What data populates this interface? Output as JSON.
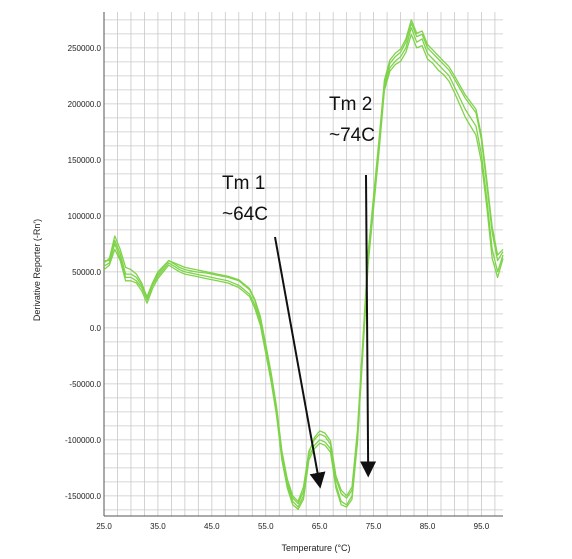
{
  "chart_data": {
    "type": "line",
    "title": "",
    "xlabel": "Temperature (°C)",
    "ylabel": "Derivative Reporter (-Rn')",
    "xlim": [
      25,
      99
    ],
    "ylim": [
      -168000,
      282000
    ],
    "x_ticks": [
      {
        "value": 25,
        "label": "25.0"
      },
      {
        "value": 35,
        "label": "35.0"
      },
      {
        "value": 45,
        "label": "45.0"
      },
      {
        "value": 55,
        "label": "55.0"
      },
      {
        "value": 65,
        "label": "65.0"
      },
      {
        "value": 75,
        "label": "75.0"
      },
      {
        "value": 85,
        "label": "85.0"
      },
      {
        "value": 95,
        "label": "95.0"
      }
    ],
    "y_ticks": [
      {
        "value": 250000,
        "label": "250000.0"
      },
      {
        "value": 200000,
        "label": "200000.0"
      },
      {
        "value": 150000,
        "label": "150000.0"
      },
      {
        "value": 100000,
        "label": "100000.0"
      },
      {
        "value": 50000,
        "label": "50000.0"
      },
      {
        "value": 0,
        "label": "0.0"
      },
      {
        "value": -50000,
        "label": "-50000.0"
      },
      {
        "value": -100000,
        "label": "-100000.0"
      },
      {
        "value": -150000,
        "label": "-150000.0"
      }
    ],
    "grid": true,
    "grid_minor_x_step": 2.5,
    "grid_minor_y_step": 12500,
    "line_color": "#7fd34a",
    "series": [
      {
        "x": [
          25,
          26,
          27,
          28,
          29,
          30,
          31,
          32,
          33,
          34,
          35,
          36,
          37,
          38,
          39,
          40,
          42,
          44,
          46,
          48,
          50,
          52,
          53,
          54,
          55,
          56,
          57,
          58,
          59,
          60,
          61,
          62,
          63,
          64,
          65,
          66,
          67,
          68,
          69,
          70,
          71,
          72,
          73,
          74,
          75,
          76,
          77,
          78,
          79,
          80,
          81,
          82,
          83,
          84,
          85,
          86,
          87,
          88,
          89,
          90,
          92,
          94,
          95,
          96,
          97,
          98,
          99
        ],
        "y": [
          55000,
          58000,
          75000,
          62000,
          45000,
          45000,
          42000,
          36000,
          25000,
          38000,
          46000,
          52000,
          58000,
          55000,
          52000,
          50000,
          48000,
          46000,
          44000,
          42000,
          38000,
          30000,
          20000,
          5000,
          -20000,
          -45000,
          -75000,
          -115000,
          -140000,
          -155000,
          -160000,
          -150000,
          -115000,
          -105000,
          -100000,
          -102000,
          -108000,
          -140000,
          -155000,
          -158000,
          -150000,
          -100000,
          -20000,
          60000,
          110000,
          160000,
          215000,
          232000,
          238000,
          242000,
          250000,
          268000,
          255000,
          258000,
          245000,
          240000,
          235000,
          230000,
          225000,
          215000,
          195000,
          180000,
          155000,
          115000,
          70000,
          50000,
          65000
        ]
      },
      {
        "x": [
          25,
          26,
          27,
          28,
          29,
          30,
          31,
          32,
          33,
          34,
          35,
          36,
          37,
          38,
          39,
          40,
          42,
          44,
          46,
          48,
          50,
          52,
          53,
          54,
          55,
          56,
          57,
          58,
          59,
          60,
          61,
          62,
          63,
          64,
          65,
          66,
          67,
          68,
          69,
          70,
          71,
          72,
          73,
          74,
          75,
          76,
          77,
          78,
          79,
          80,
          81,
          82,
          83,
          84,
          85,
          86,
          87,
          88,
          89,
          90,
          92,
          94,
          95,
          96,
          97,
          98,
          99
        ],
        "y": [
          58000,
          62000,
          82000,
          70000,
          54000,
          52000,
          48000,
          40000,
          27000,
          40000,
          50000,
          55000,
          60000,
          58000,
          56000,
          54000,
          52000,
          50000,
          48000,
          46000,
          43000,
          35000,
          25000,
          10000,
          -15000,
          -40000,
          -70000,
          -110000,
          -135000,
          -150000,
          -155000,
          -142000,
          -110000,
          -100000,
          -95000,
          -97000,
          -104000,
          -135000,
          -148000,
          -152000,
          -145000,
          -95000,
          -15000,
          65000,
          115000,
          165000,
          218000,
          236000,
          242000,
          246000,
          255000,
          272000,
          260000,
          262000,
          250000,
          245000,
          240000,
          235000,
          230000,
          222000,
          205000,
          192000,
          168000,
          128000,
          85000,
          60000,
          68000
        ]
      },
      {
        "x": [
          25,
          26,
          27,
          28,
          29,
          30,
          31,
          32,
          33,
          34,
          35,
          36,
          37,
          38,
          39,
          40,
          42,
          44,
          46,
          48,
          50,
          52,
          53,
          54,
          55,
          56,
          57,
          58,
          59,
          60,
          61,
          62,
          63,
          64,
          65,
          66,
          67,
          68,
          69,
          70,
          71,
          72,
          73,
          74,
          75,
          76,
          77,
          78,
          79,
          80,
          81,
          82,
          83,
          84,
          85,
          86,
          87,
          88,
          89,
          90,
          92,
          94,
          95,
          96,
          97,
          98,
          99
        ],
        "y": [
          52000,
          56000,
          70000,
          60000,
          42000,
          42000,
          40000,
          33000,
          22000,
          35000,
          44000,
          50000,
          56000,
          53000,
          50000,
          48000,
          46000,
          44000,
          42000,
          40000,
          36000,
          28000,
          17000,
          2000,
          -23000,
          -48000,
          -78000,
          -118000,
          -143000,
          -158000,
          -162000,
          -153000,
          -118000,
          -108000,
          -103000,
          -105000,
          -111000,
          -143000,
          -158000,
          -160000,
          -153000,
          -103000,
          -23000,
          57000,
          107000,
          157000,
          212000,
          229000,
          235000,
          238000,
          246000,
          262000,
          250000,
          252000,
          240000,
          236000,
          230000,
          226000,
          220000,
          210000,
          188000,
          172000,
          148000,
          108000,
          62000,
          45000,
          62000
        ]
      },
      {
        "x": [
          25,
          26,
          27,
          28,
          29,
          30,
          31,
          32,
          33,
          34,
          35,
          36,
          37,
          38,
          39,
          40,
          42,
          44,
          46,
          48,
          50,
          52,
          53,
          54,
          55,
          56,
          57,
          58,
          59,
          60,
          61,
          62,
          63,
          64,
          65,
          66,
          67,
          68,
          69,
          70,
          71,
          72,
          73,
          74,
          75,
          76,
          77,
          78,
          79,
          80,
          81,
          82,
          83,
          84,
          85,
          86,
          87,
          88,
          89,
          90,
          92,
          94,
          95,
          96,
          97,
          98,
          99
        ],
        "y": [
          60000,
          60000,
          78000,
          66000,
          48000,
          48000,
          45000,
          38000,
          28000,
          40000,
          48000,
          54000,
          60000,
          57000,
          54000,
          52000,
          50000,
          49000,
          47000,
          45000,
          42000,
          34000,
          24000,
          8000,
          -17000,
          -42000,
          -72000,
          -112000,
          -138000,
          -152000,
          -157000,
          -146000,
          -112000,
          -98000,
          -92000,
          -94000,
          -101000,
          -132000,
          -145000,
          -150000,
          -142000,
          -92000,
          -12000,
          68000,
          118000,
          168000,
          221000,
          239000,
          245000,
          249000,
          258000,
          275000,
          263000,
          265000,
          253000,
          248000,
          243000,
          238000,
          233000,
          225000,
          208000,
          195000,
          172000,
          132000,
          90000,
          65000,
          70000
        ]
      }
    ],
    "annotations": [
      {
        "line1": "Tm 1",
        "line2": "~64C",
        "arrow_to": {
          "x": 65,
          "y": -140000
        }
      },
      {
        "line1": "Tm 2",
        "line2": "~74C",
        "arrow_to": {
          "x": 74,
          "y": -130000
        }
      }
    ]
  }
}
